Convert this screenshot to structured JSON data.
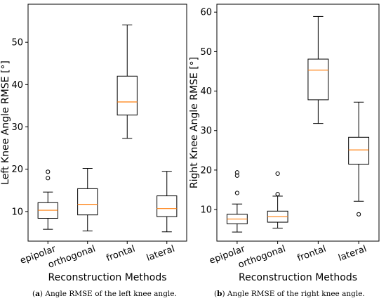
{
  "captions": [
    {
      "label": "a",
      "text": "Angle RMSE of the left knee angle."
    },
    {
      "label": "b",
      "text": "Angle RMSE of the right knee angle."
    }
  ],
  "colors": {
    "median": "#ff7f0e",
    "box": "#000000",
    "background": "#ffffff"
  },
  "chart_data": [
    {
      "type": "box",
      "categories": [
        "epipolar",
        "orthogonal",
        "frontal",
        "lateral"
      ],
      "xlabel": "Reconstruction Methods",
      "ylabel": "Left Knee Angle RMSE [°]",
      "ylim": [
        3,
        59
      ],
      "yticks": [
        10,
        20,
        30,
        40,
        50
      ],
      "grid": false,
      "boxes": [
        {
          "whislo": 5.8,
          "q1": 8.4,
          "med": 10.3,
          "q3": 12.1,
          "whishi": 14.6,
          "fliers": [
            17.9,
            19.4
          ]
        },
        {
          "whislo": 5.4,
          "q1": 9.2,
          "med": 11.7,
          "q3": 15.4,
          "whishi": 20.2,
          "fliers": []
        },
        {
          "whislo": 27.3,
          "q1": 32.8,
          "med": 35.9,
          "q3": 42.0,
          "whishi": 54.1,
          "fliers": []
        },
        {
          "whislo": 5.2,
          "q1": 8.8,
          "med": 10.7,
          "q3": 13.7,
          "whishi": 19.5,
          "fliers": []
        }
      ]
    },
    {
      "type": "box",
      "categories": [
        "epipolar",
        "orthogonal",
        "frontal",
        "lateral"
      ],
      "xlabel": "Reconstruction Methods",
      "ylabel": "Right Knee Angle RMSE [°]",
      "ylim": [
        2,
        62
      ],
      "yticks": [
        10,
        20,
        30,
        40,
        50,
        60
      ],
      "grid": false,
      "boxes": [
        {
          "whislo": 4.3,
          "q1": 6.4,
          "med": 7.6,
          "q3": 8.8,
          "whishi": 11.4,
          "fliers": [
            14.2,
            18.6,
            19.4
          ]
        },
        {
          "whislo": 5.3,
          "q1": 6.8,
          "med": 8.2,
          "q3": 9.6,
          "whishi": 13.4,
          "fliers": [
            13.9,
            19.1
          ]
        },
        {
          "whislo": 31.8,
          "q1": 37.8,
          "med": 45.3,
          "q3": 48.1,
          "whishi": 58.9,
          "fliers": []
        },
        {
          "whislo": 12.1,
          "q1": 21.5,
          "med": 25.1,
          "q3": 28.3,
          "whishi": 37.2,
          "fliers": [
            8.8
          ]
        }
      ]
    }
  ]
}
